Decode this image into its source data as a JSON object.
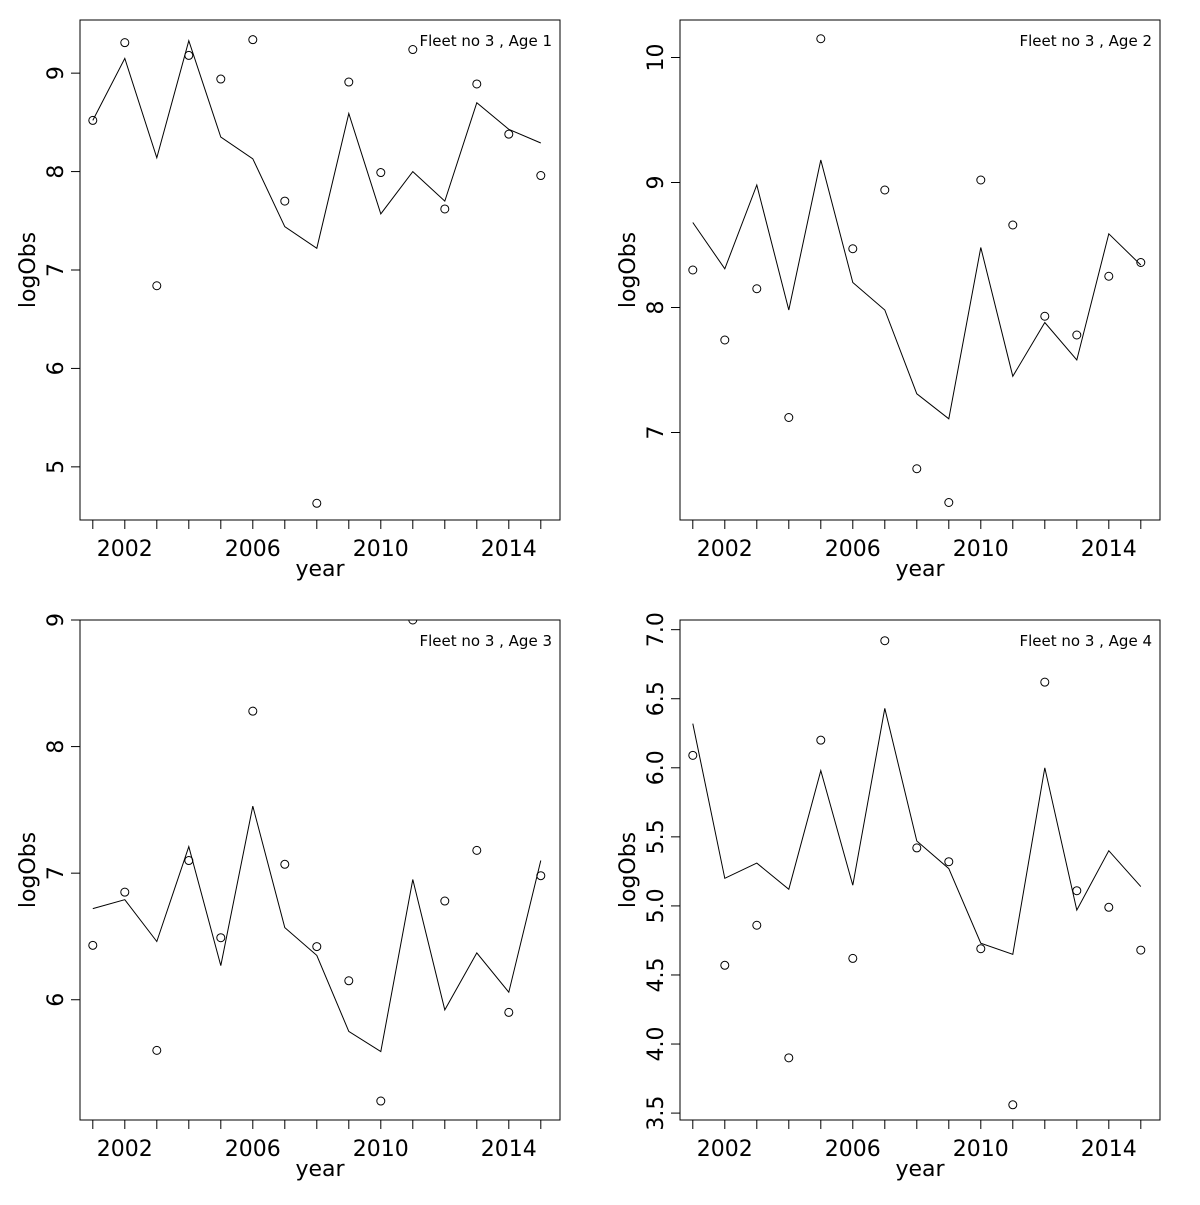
{
  "chart_data": [
    {
      "type": "line",
      "annotation": "Fleet no 3 , Age 1",
      "xlabel": "year",
      "ylabel": "logObs",
      "xlim": [
        2000.6,
        2015.6
      ],
      "ylim": [
        4.46,
        9.54
      ],
      "xticks": [
        2002,
        2006,
        2010,
        2014
      ],
      "xtick_labels": [
        "2002",
        "2006",
        "2010",
        "2014"
      ],
      "yticks": [
        5,
        6,
        7,
        8,
        9
      ],
      "ytick_labels": [
        "5",
        "6",
        "7",
        "8",
        "9"
      ],
      "x": [
        2001,
        2002,
        2003,
        2004,
        2005,
        2006,
        2007,
        2008,
        2009,
        2010,
        2011,
        2012,
        2013,
        2014,
        2015
      ],
      "series": [
        {
          "kind": "points",
          "values": [
            8.52,
            9.31,
            6.84,
            9.18,
            8.94,
            9.34,
            7.7,
            4.63,
            8.91,
            7.99,
            9.24,
            7.62,
            8.89,
            8.38,
            7.96
          ]
        },
        {
          "kind": "line",
          "values": [
            8.52,
            9.15,
            8.14,
            9.33,
            8.35,
            8.13,
            7.44,
            7.22,
            8.59,
            7.57,
            8.0,
            7.7,
            8.7,
            8.43,
            8.29
          ]
        }
      ]
    },
    {
      "type": "line",
      "annotation": "Fleet no 3 , Age 2",
      "xlabel": "year",
      "ylabel": "logObs",
      "xlim": [
        2000.6,
        2015.6
      ],
      "ylim": [
        6.3,
        10.3
      ],
      "xticks": [
        2002,
        2006,
        2010,
        2014
      ],
      "xtick_labels": [
        "2002",
        "2006",
        "2010",
        "2014"
      ],
      "yticks": [
        7,
        8,
        9,
        10
      ],
      "ytick_labels": [
        "7",
        "8",
        "9",
        "10"
      ],
      "x": [
        2001,
        2002,
        2003,
        2004,
        2005,
        2006,
        2007,
        2008,
        2009,
        2010,
        2011,
        2012,
        2013,
        2014,
        2015
      ],
      "series": [
        {
          "kind": "points",
          "values": [
            8.3,
            7.74,
            8.15,
            7.12,
            10.15,
            8.47,
            8.94,
            6.71,
            6.44,
            9.02,
            8.66,
            7.93,
            7.78,
            8.25,
            8.36
          ]
        },
        {
          "kind": "line",
          "values": [
            8.68,
            8.31,
            8.98,
            7.98,
            9.18,
            8.2,
            7.98,
            7.31,
            7.11,
            8.48,
            7.45,
            7.88,
            7.58,
            8.59,
            8.34
          ]
        }
      ]
    },
    {
      "type": "line",
      "annotation": "Fleet no 3 , Age 3",
      "xlabel": "year",
      "ylabel": "logObs",
      "xlim": [
        2000.6,
        2015.6
      ],
      "ylim": [
        5.05,
        9.0
      ],
      "xticks": [
        2002,
        2006,
        2010,
        2014
      ],
      "xtick_labels": [
        "2002",
        "2006",
        "2010",
        "2014"
      ],
      "yticks": [
        6,
        7,
        8,
        9
      ],
      "ytick_labels": [
        "6",
        "7",
        "8",
        "9"
      ],
      "x": [
        2001,
        2002,
        2003,
        2004,
        2005,
        2006,
        2007,
        2008,
        2009,
        2010,
        2011,
        2012,
        2013,
        2014,
        2015
      ],
      "series": [
        {
          "kind": "points",
          "values": [
            6.43,
            6.85,
            5.6,
            7.1,
            6.49,
            8.28,
            7.07,
            6.42,
            6.15,
            5.2,
            9.0,
            6.78,
            7.18,
            5.9,
            6.98
          ]
        },
        {
          "kind": "line",
          "values": [
            6.72,
            6.79,
            6.46,
            7.21,
            6.27,
            7.53,
            6.57,
            6.35,
            5.75,
            5.59,
            6.95,
            5.92,
            6.37,
            6.06,
            7.1
          ]
        }
      ]
    },
    {
      "type": "line",
      "annotation": "Fleet no 3 , Age 4",
      "xlabel": "year",
      "ylabel": "logObs",
      "xlim": [
        2000.6,
        2015.6
      ],
      "ylim": [
        3.45,
        7.07
      ],
      "xticks": [
        2002,
        2006,
        2010,
        2014
      ],
      "xtick_labels": [
        "2002",
        "2006",
        "2010",
        "2014"
      ],
      "yticks": [
        3.5,
        4.0,
        4.5,
        5.0,
        5.5,
        6.0,
        6.5,
        7.0
      ],
      "ytick_labels": [
        "3.5",
        "4.0",
        "4.5",
        "5.0",
        "5.5",
        "6.0",
        "6.5",
        "7.0"
      ],
      "x": [
        2001,
        2002,
        2003,
        2004,
        2005,
        2006,
        2007,
        2008,
        2009,
        2010,
        2011,
        2012,
        2013,
        2014,
        2015
      ],
      "series": [
        {
          "kind": "points",
          "values": [
            6.09,
            4.57,
            4.86,
            3.9,
            6.2,
            4.62,
            6.92,
            5.42,
            5.32,
            4.69,
            3.56,
            6.62,
            5.11,
            4.99,
            4.68
          ]
        },
        {
          "kind": "line",
          "values": [
            6.32,
            5.2,
            5.31,
            5.12,
            5.98,
            5.15,
            6.43,
            5.47,
            5.27,
            4.73,
            4.65,
            6.0,
            4.97,
            5.4,
            5.14
          ]
        }
      ]
    }
  ]
}
